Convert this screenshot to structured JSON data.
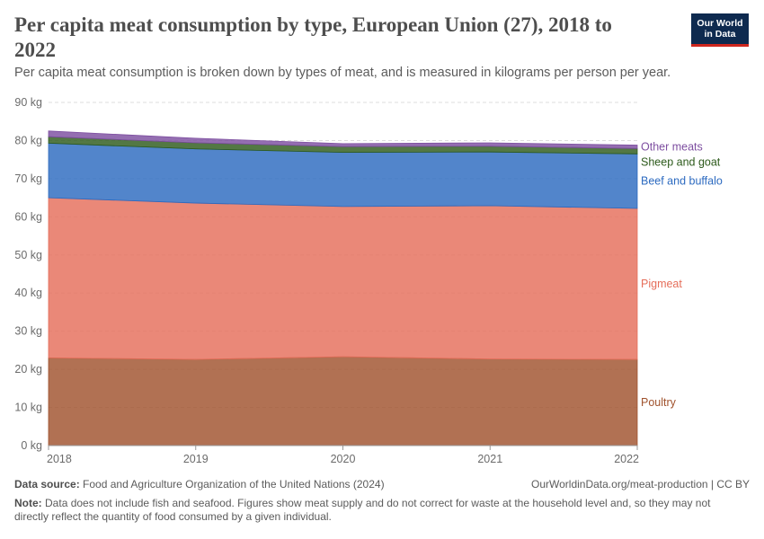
{
  "header": {
    "title": "Per capita meat consumption by type, European Union (27), 2018 to 2022",
    "subtitle": "Per capita meat consumption is broken down by types of meat, and is measured in kilograms per person per year.",
    "logo_line1": "Our World",
    "logo_line2": "in Data"
  },
  "footer": {
    "source_label": "Data source:",
    "source_text": "Food and Agriculture Organization of the United Nations (2024)",
    "license": "OurWorldinData.org/meat-production | CC BY",
    "note_label": "Note:",
    "note_text": "Data does not include fish and seafood. Figures show meat supply and do not correct for waste at the household level and, so they may not directly reflect the quantity of food consumed by a given individual."
  },
  "chart_data": {
    "type": "area",
    "stacked": true,
    "x": [
      2018,
      2019,
      2020,
      2021,
      2022
    ],
    "ylim": [
      0,
      90
    ],
    "yticks": [
      0,
      10,
      20,
      30,
      40,
      50,
      60,
      70,
      80,
      90
    ],
    "ytick_labels": [
      "0 kg",
      "10 kg",
      "20 kg",
      "30 kg",
      "40 kg",
      "50 kg",
      "60 kg",
      "70 kg",
      "80 kg",
      "90 kg"
    ],
    "xtick_labels": [
      "2018",
      "2019",
      "2020",
      "2021",
      "2022"
    ],
    "grid": "horizontal dashed",
    "legend": "right, inline labels",
    "series": [
      {
        "name": "Poultry",
        "color": "#a0522d",
        "label_color": "#a0522d",
        "values": [
          23.0,
          22.6,
          23.3,
          22.7,
          22.6
        ]
      },
      {
        "name": "Pigmeat",
        "color": "#e56e5a",
        "label_color": "#e56e5a",
        "values": [
          42.0,
          41.0,
          39.4,
          40.2,
          39.6
        ]
      },
      {
        "name": "Beef and buffalo",
        "color": "#2c6ac0",
        "label_color": "#2c6ac0",
        "values": [
          14.3,
          14.2,
          14.2,
          14.1,
          14.3
        ]
      },
      {
        "name": "Sheep and goat",
        "color": "#2d5a1b",
        "label_color": "#2d5a1b",
        "values": [
          1.7,
          1.6,
          1.5,
          1.5,
          1.4
        ]
      },
      {
        "name": "Other meats",
        "color": "#7d4ea0",
        "label_color": "#7d4ea0",
        "values": [
          1.5,
          1.2,
          0.8,
          0.9,
          0.9
        ]
      }
    ]
  }
}
